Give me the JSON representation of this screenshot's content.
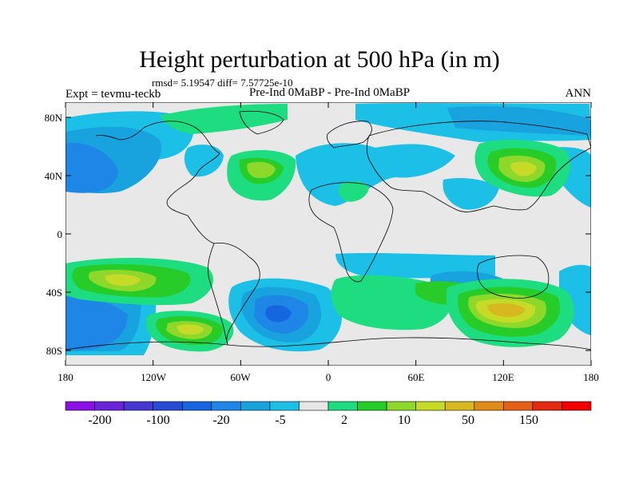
{
  "title": "Height perturbation at 500 hPa (in m)",
  "stats_line": "rmsd= 5.19547  diff= 7.57725e-10",
  "experiment_label": "Expt = tevmu-teckb",
  "comparison_label": "Pre-Ind 0MaBP - Pre-Ind 0MaBP",
  "season": "ANN",
  "map": {
    "background_color": "#e8e8e8",
    "lat_ticks": [
      "80N",
      "40N",
      "0",
      "40S",
      "80S"
    ],
    "lon_ticks": [
      "180",
      "120W",
      "60W",
      "0",
      "60E",
      "120E",
      "180"
    ]
  },
  "colorbar": {
    "colors": [
      "#8a10e6",
      "#6a24d8",
      "#4638d2",
      "#2a4ad6",
      "#1666e0",
      "#1e86e6",
      "#18a2de",
      "#1cbfe6",
      "#e6e6e6",
      "#1edc80",
      "#28cc28",
      "#8ed82c",
      "#c6da28",
      "#d8b820",
      "#e08a18",
      "#e46014",
      "#e42a0e",
      "#f00000"
    ],
    "labels": [
      "-200",
      "-100",
      "-20",
      "-5",
      "2",
      "10",
      "50",
      "150"
    ]
  }
}
